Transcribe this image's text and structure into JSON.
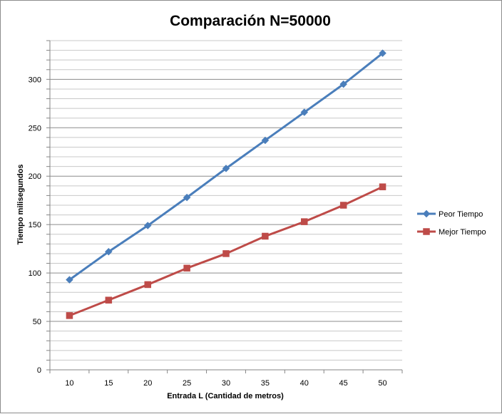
{
  "chart_data": {
    "type": "line",
    "title": "Comparación N=50000",
    "xlabel": "Entrada L (Cantidad de metros)",
    "ylabel": "Tiempo milisegundos",
    "x": [
      10,
      15,
      20,
      25,
      30,
      35,
      40,
      45,
      50
    ],
    "x_ticks": [
      "10",
      "15",
      "20",
      "25",
      "30",
      "35",
      "40",
      "45",
      "50"
    ],
    "y_ticks": [
      "0",
      "50",
      "100",
      "150",
      "200",
      "250",
      "300"
    ],
    "ylim": [
      0,
      340
    ],
    "grid": true,
    "legend_position": "right",
    "series": [
      {
        "name": "Peor Tiempo",
        "color": "#4a7ebb",
        "marker": "diamond",
        "values": [
          93,
          122,
          149,
          178,
          208,
          237,
          266,
          295,
          327
        ]
      },
      {
        "name": "Mejor Tiempo",
        "color": "#be4b48",
        "marker": "square",
        "values": [
          56,
          72,
          88,
          105,
          120,
          138,
          153,
          170,
          189
        ]
      }
    ]
  }
}
